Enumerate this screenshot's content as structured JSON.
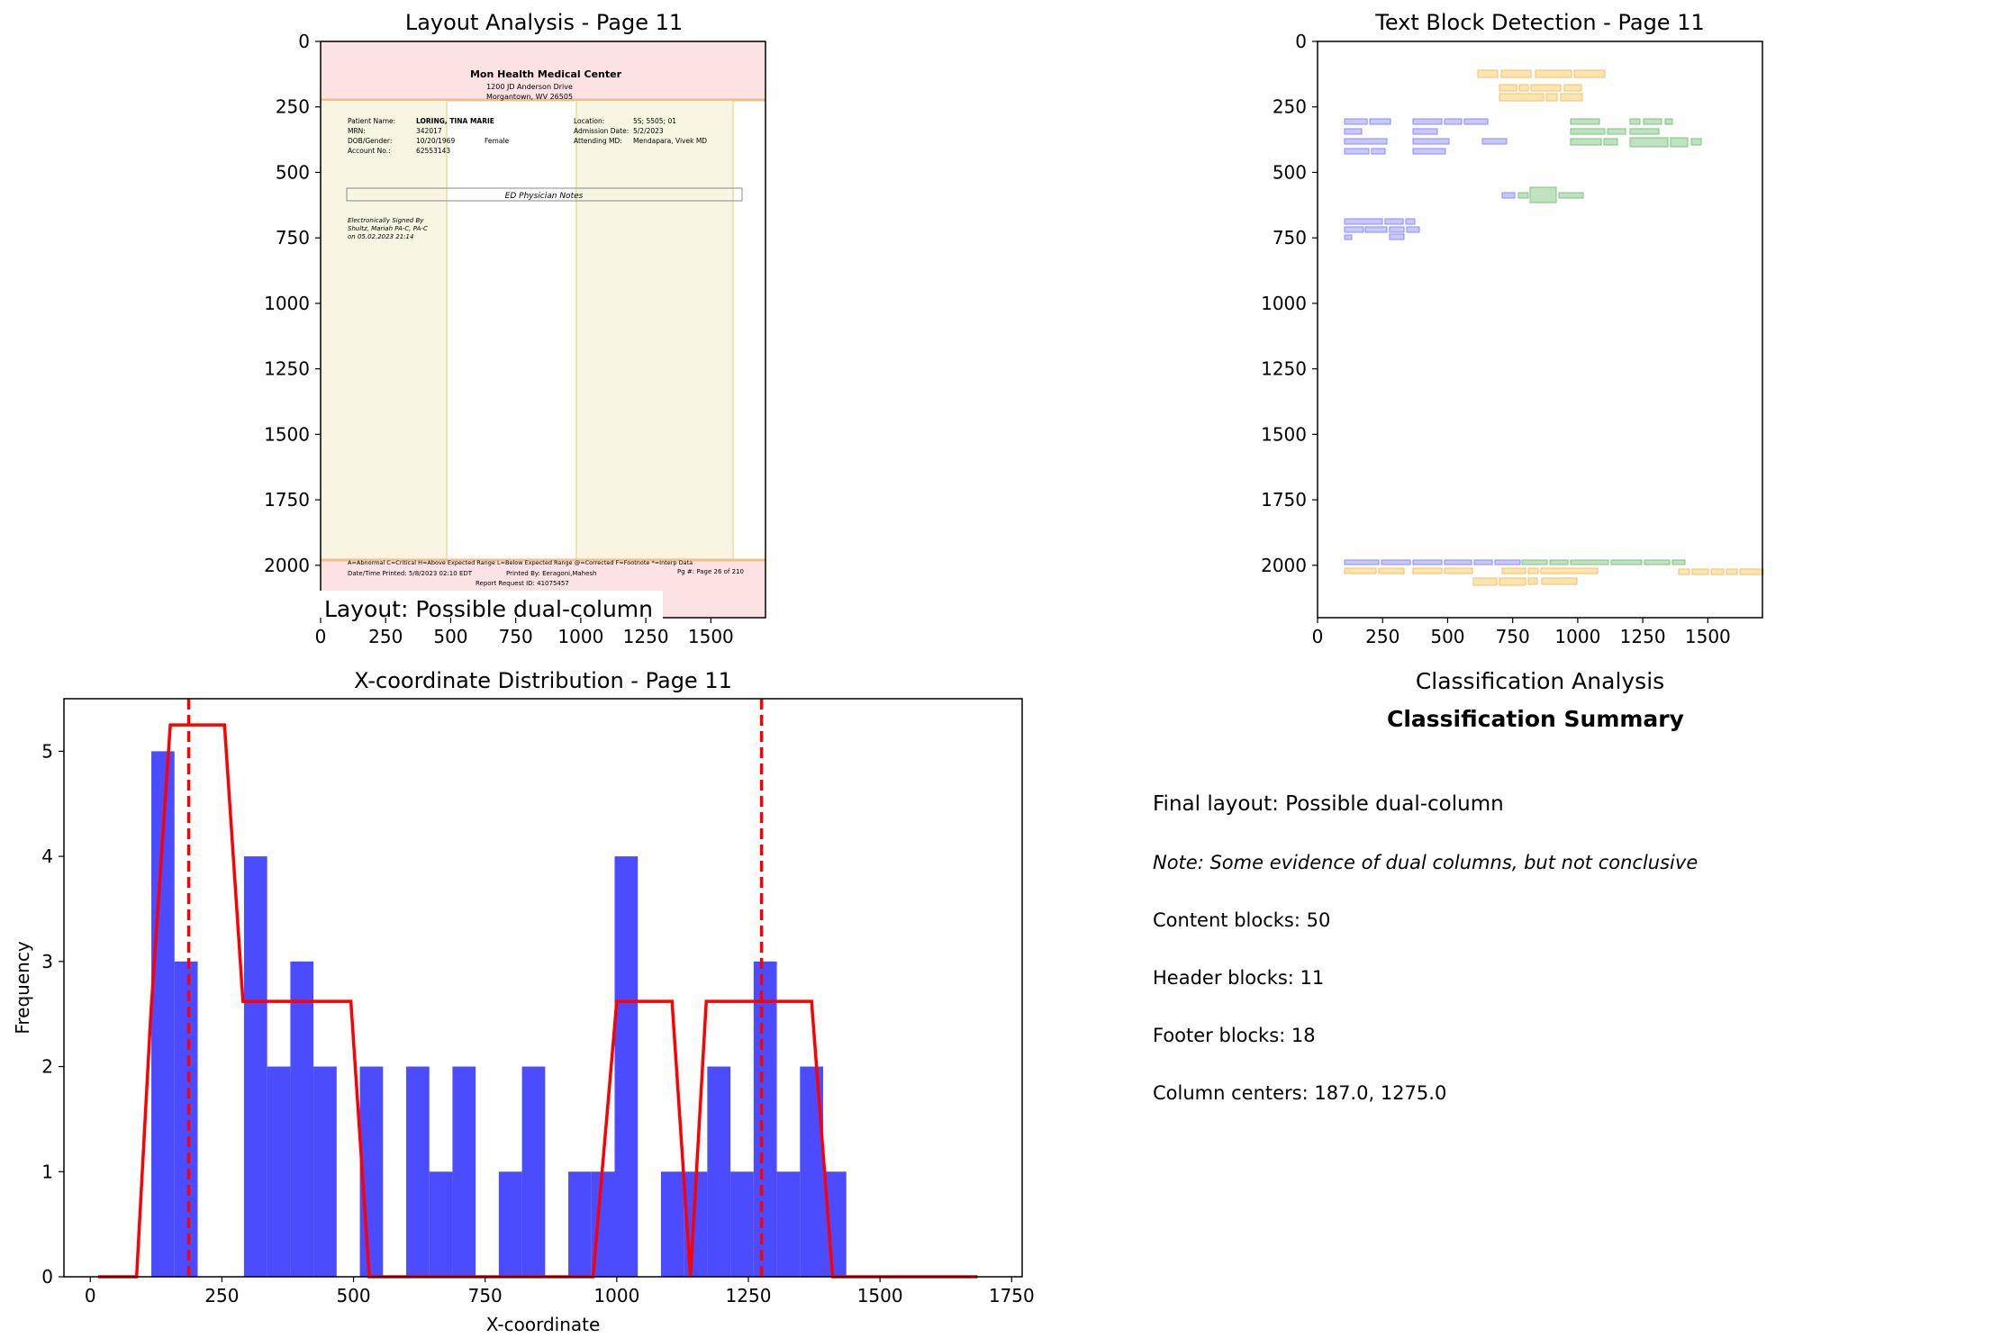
{
  "page": {
    "number": 11
  },
  "panels": {
    "layout": {
      "title": "Layout Analysis - Page 11",
      "badge": "Layout: Possible dual-column",
      "x_ticks": [
        "0",
        "250",
        "500",
        "750",
        "1000",
        "1250",
        "1500"
      ],
      "y_ticks": [
        "0",
        "250",
        "500",
        "750",
        "1000",
        "1250",
        "1500",
        "1750",
        "2000"
      ],
      "document": {
        "header_title": "Mon Health Medical Center",
        "address_1": "1200 JD Anderson Drive",
        "address_2": "Morgantown, WV 26505",
        "left_fields": [
          {
            "label": "Patient Name:",
            "value": "LORING, TINA MARIE"
          },
          {
            "label": "MRN:",
            "value": "342017"
          },
          {
            "label": "DOB/Gender:",
            "value": "10/20/1969",
            "extra": "Female"
          },
          {
            "label": "Account No.:",
            "value": "62553143"
          }
        ],
        "right_fields": [
          {
            "label": "Location:",
            "value": "5S; 5505; 01"
          },
          {
            "label": "Admission Date:",
            "value": "5/2/2023"
          },
          {
            "label": "Attending MD:",
            "value": "Mendapara, Vivek MD"
          }
        ],
        "section_box": "ED Physician Notes",
        "signed_1": "Electronically Signed By",
        "signed_2": "Shultz, Mariah PA-C, PA-C",
        "signed_3": "on 05.02.2023 21:14",
        "footer_legend": "A=Abnormal C=Critical H=Above Expected Range L=Below Expected Range @=Corrected F=Footnote *=Interp Data",
        "footer_printed": "Date/Time Printed:   5/8/2023 02:10 EDT",
        "footer_printed_by": "Printed By:  Eeragoni,Mahesh",
        "footer_page": "Pg #:  Page 26 of 210",
        "footer_request": "Report Request ID:  41075457"
      },
      "colors": {
        "header_band": "#fde2e4",
        "column_band": "#f8f6e2",
        "footer_band": "#fde2e4"
      }
    },
    "detection": {
      "title": "Text Block Detection - Page 11",
      "x_ticks": [
        "0",
        "250",
        "500",
        "750",
        "1000",
        "1250",
        "1500"
      ],
      "y_ticks": [
        "0",
        "250",
        "500",
        "750",
        "1000",
        "1250",
        "1500",
        "1750",
        "2000"
      ],
      "colors": {
        "left": "#9999ff",
        "right": "#88cc88",
        "header_footer": "#ffd27f"
      }
    },
    "summary": {
      "axis_title": "Classification Analysis",
      "title": "Classification Summary",
      "final_layout": "Final layout: Possible dual-column",
      "note": "Note: Some evidence of dual columns, but not conclusive",
      "content_blocks": "Content blocks: 50",
      "header_blocks": "Header blocks: 11",
      "footer_blocks": "Footer blocks: 18",
      "column_centers": "Column centers: 187.0, 1275.0"
    }
  },
  "chart_data": {
    "type": "bar",
    "title": "X-coordinate Distribution - Page 11",
    "xlabel": "X-coordinate",
    "ylabel": "Frequency",
    "xlim": [
      -50,
      1770
    ],
    "ylim": [
      0,
      5.5
    ],
    "x_ticks": [
      "0",
      "250",
      "500",
      "750",
      "1000",
      "1250",
      "1500",
      "1750"
    ],
    "y_ticks": [
      "0",
      "1",
      "2",
      "3",
      "4",
      "5"
    ],
    "bin_width": 44,
    "bin_starts": [
      116,
      160,
      292,
      336,
      380,
      424,
      512,
      600,
      644,
      688,
      776,
      820,
      908,
      952,
      996,
      1084,
      1128,
      1172,
      1216,
      1260,
      1304,
      1348,
      1392
    ],
    "values": [
      5,
      3,
      4,
      2,
      3,
      2,
      2,
      2,
      1,
      2,
      1,
      2,
      1,
      1,
      4,
      1,
      1,
      2,
      1,
      3,
      1,
      2,
      1
    ],
    "bar_color": "#4b4bff",
    "density_line": {
      "color": "#ff0000",
      "x": [
        15,
        88,
        115,
        152,
        255,
        290,
        495,
        530,
        955,
        1000,
        1105,
        1140,
        1170,
        1370,
        1410,
        1685
      ],
      "y": [
        0,
        0,
        2.5,
        5.25,
        5.25,
        2.62,
        2.62,
        0,
        0,
        2.62,
        2.62,
        0,
        2.62,
        2.62,
        0,
        0
      ]
    },
    "column_centers": [
      187.0,
      1275.0
    ]
  }
}
